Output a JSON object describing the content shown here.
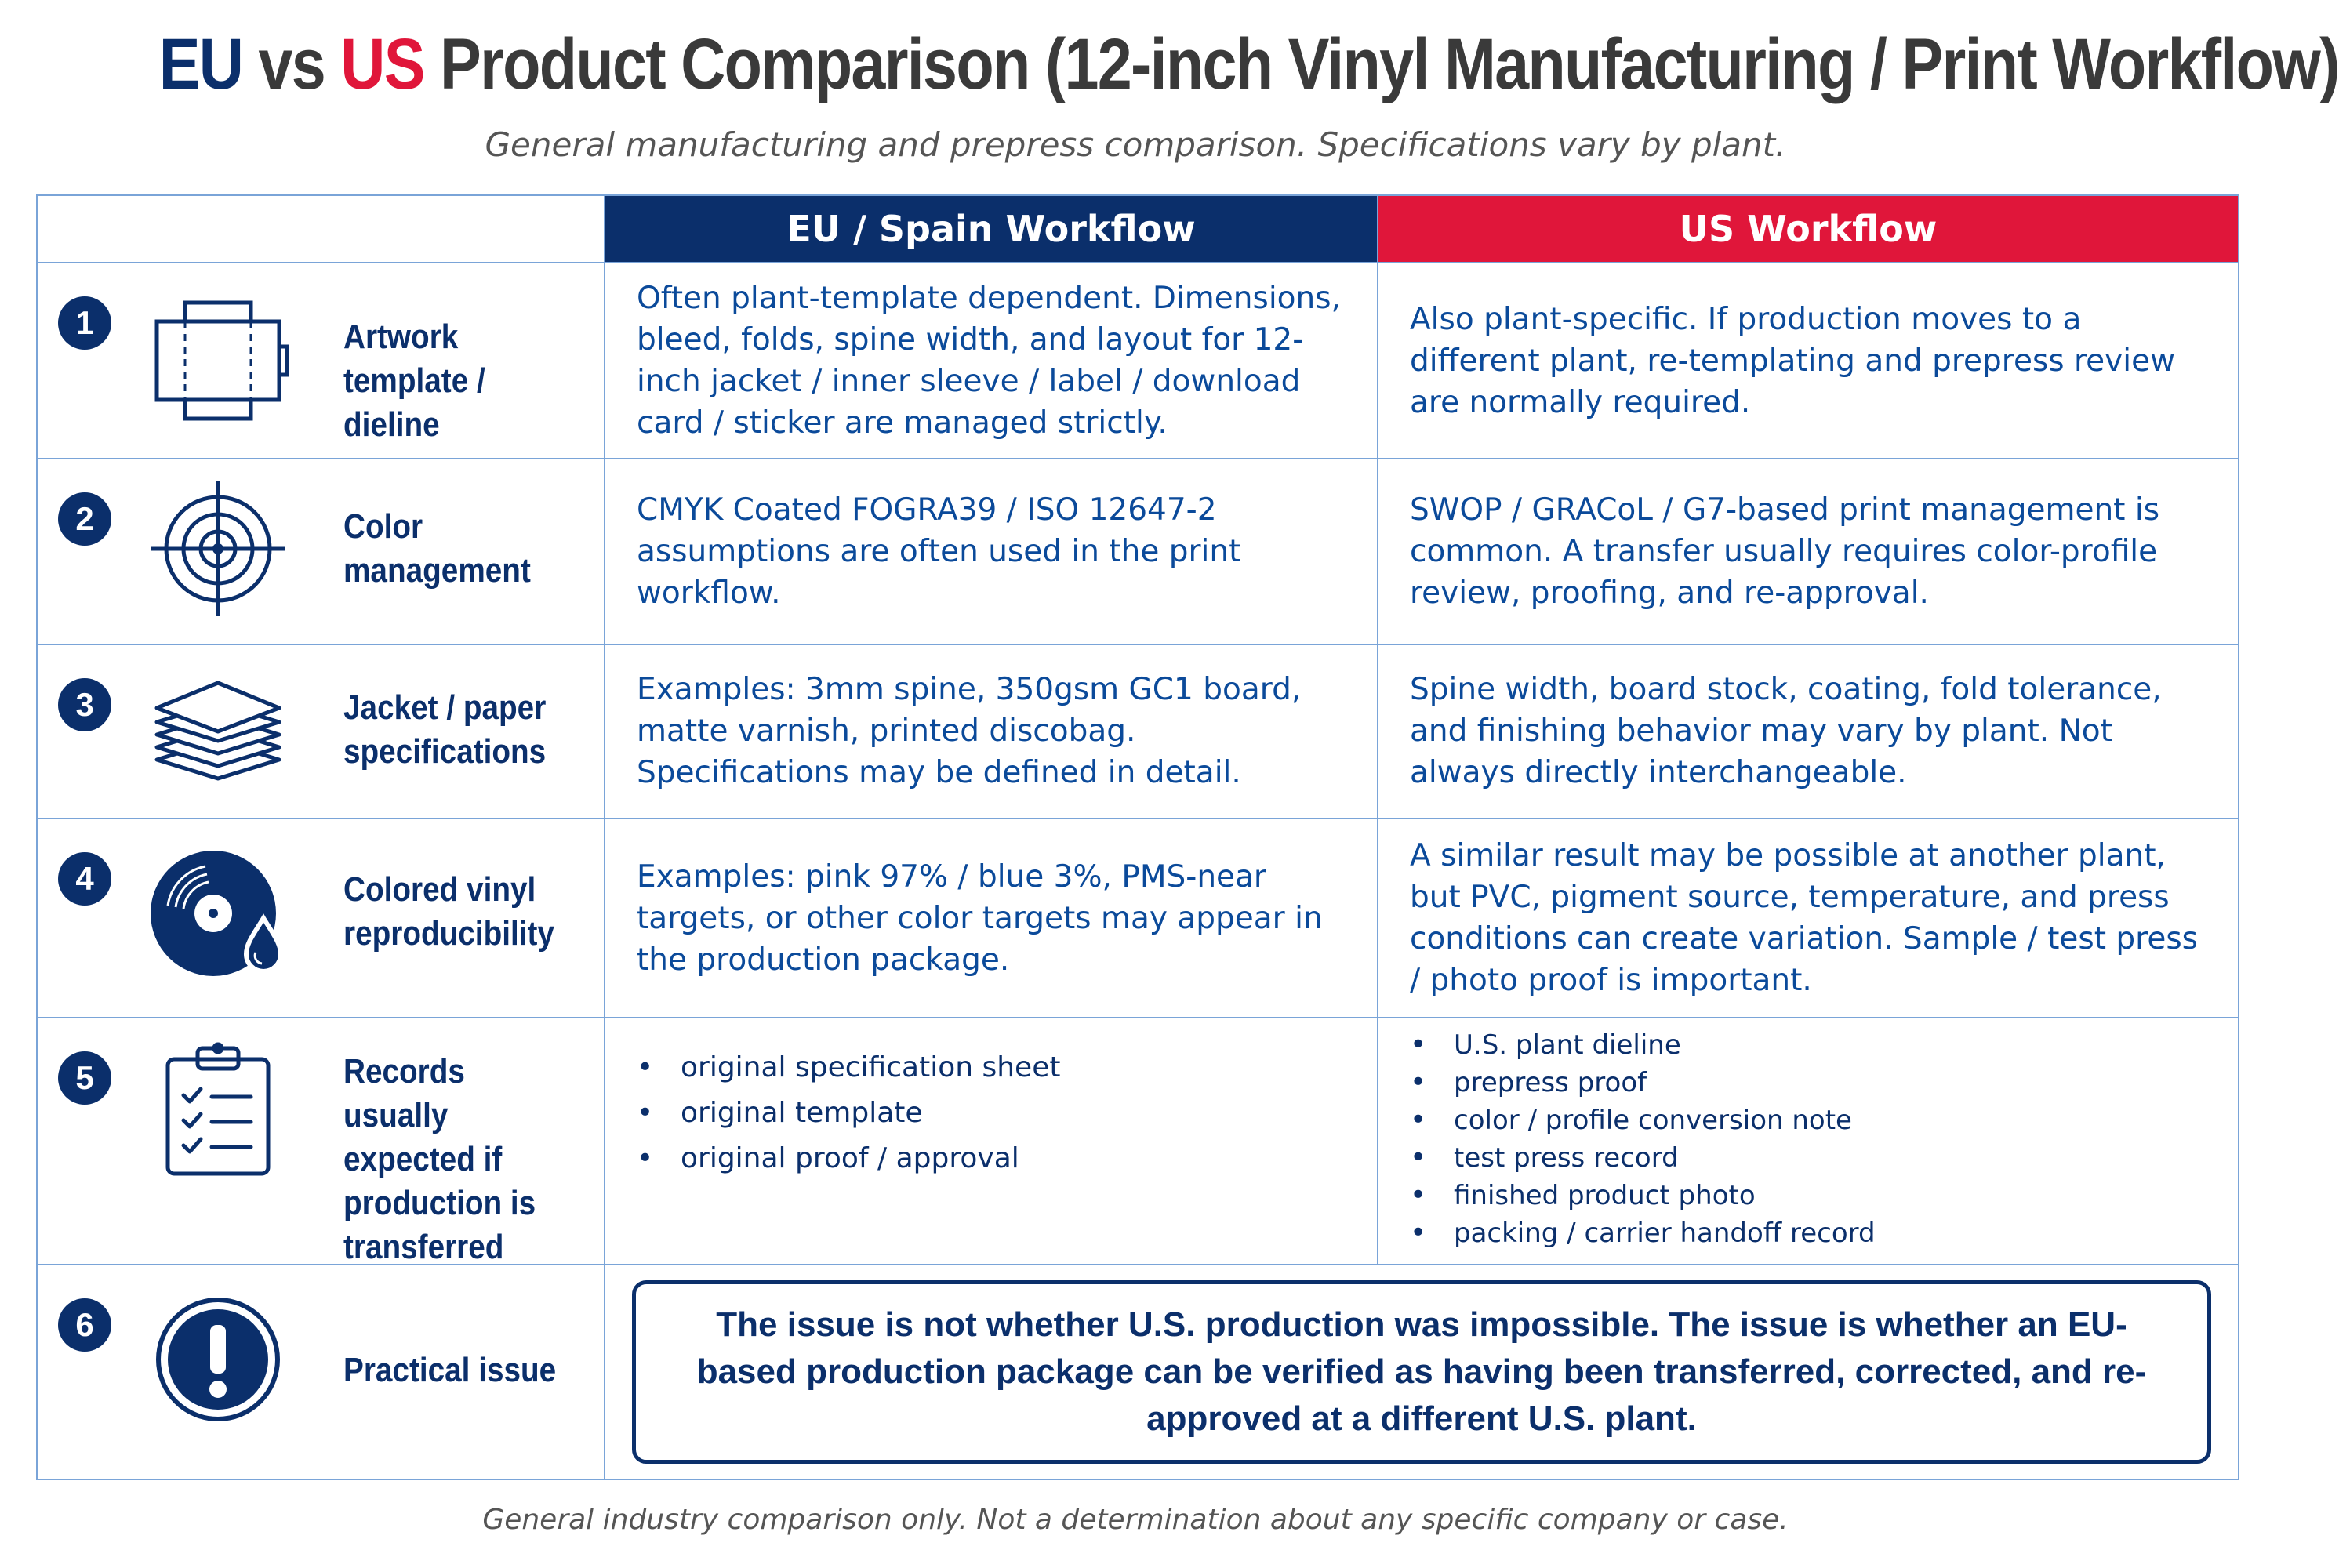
{
  "header": {
    "title_eu": "EU",
    "title_vs": "vs",
    "title_us": "US",
    "title_rest": "Product Comparison (12-inch Vinyl Manufacturing / Print Workflow)",
    "subtitle": "General manufacturing and prepress comparison. Specifications vary by plant."
  },
  "columns": {
    "eu": "EU / Spain Workflow",
    "us": "US Workflow"
  },
  "rows": [
    {
      "number": "1",
      "icon": "dieline-template-icon",
      "label": "Artwork template / dieline",
      "eu": "Often plant-template dependent. Dimensions, bleed, folds, spine width, and layout for 12-inch jacket / inner sleeve / label / download card / sticker are managed strictly.",
      "us": "Also plant-specific. If production moves to a different plant, re-templating and prepress review are normally required."
    },
    {
      "number": "2",
      "icon": "target-crosshair-icon",
      "label": "Color management",
      "eu": "CMYK Coated FOGRA39 / ISO 12647-2 assumptions are often used in the print workflow.",
      "us": "SWOP / GRACoL / G7-based print management is common.  A transfer usually requires color-profile review, proofing, and re-approval."
    },
    {
      "number": "3",
      "icon": "paper-stack-icon",
      "label": "Jacket / paper specifications",
      "eu": "Examples: 3mm spine, 350gsm GC1 board, matte varnish, printed discobag. Specifications may be defined in detail.",
      "us": "Spine width, board stock, coating, fold tolerance, and finishing behavior may vary by plant.  Not always directly interchangeable."
    },
    {
      "number": "4",
      "icon": "vinyl-record-drop-icon",
      "label": "Colored vinyl reproducibility",
      "eu": "Examples: pink 97% / blue 3%, PMS-near targets, or other color targets may appear in the production package.",
      "us": "A similar result may be possible at another plant, but PVC, pigment source, temperature, and press conditions can create variation.  Sample / test press / photo proof is important."
    },
    {
      "number": "5",
      "icon": "clipboard-checklist-icon",
      "label": "Records usually expected if production is transferred",
      "eu_list": [
        "original specification sheet",
        "original template",
        "original proof / approval"
      ],
      "us_list": [
        "U.S. plant dieline",
        "prepress proof",
        "color / profile conversion note",
        "test press record",
        "finished product photo",
        "packing / carrier handoff record"
      ]
    },
    {
      "number": "6",
      "icon": "exclamation-circle-icon",
      "label": "Practical issue",
      "callout": "The issue is not whether U.S. production was impossible. The issue is whether an EU-based production package can be verified as having been transferred, corrected, and re-approved at a different U.S. plant."
    }
  ],
  "footer": "General industry comparison only. Not a determination about any specific company or case.",
  "colors": {
    "navy": "#0b2f6b",
    "red": "#e0163a",
    "grid": "#7aa4d8",
    "body_text": "#0b4a9a"
  }
}
